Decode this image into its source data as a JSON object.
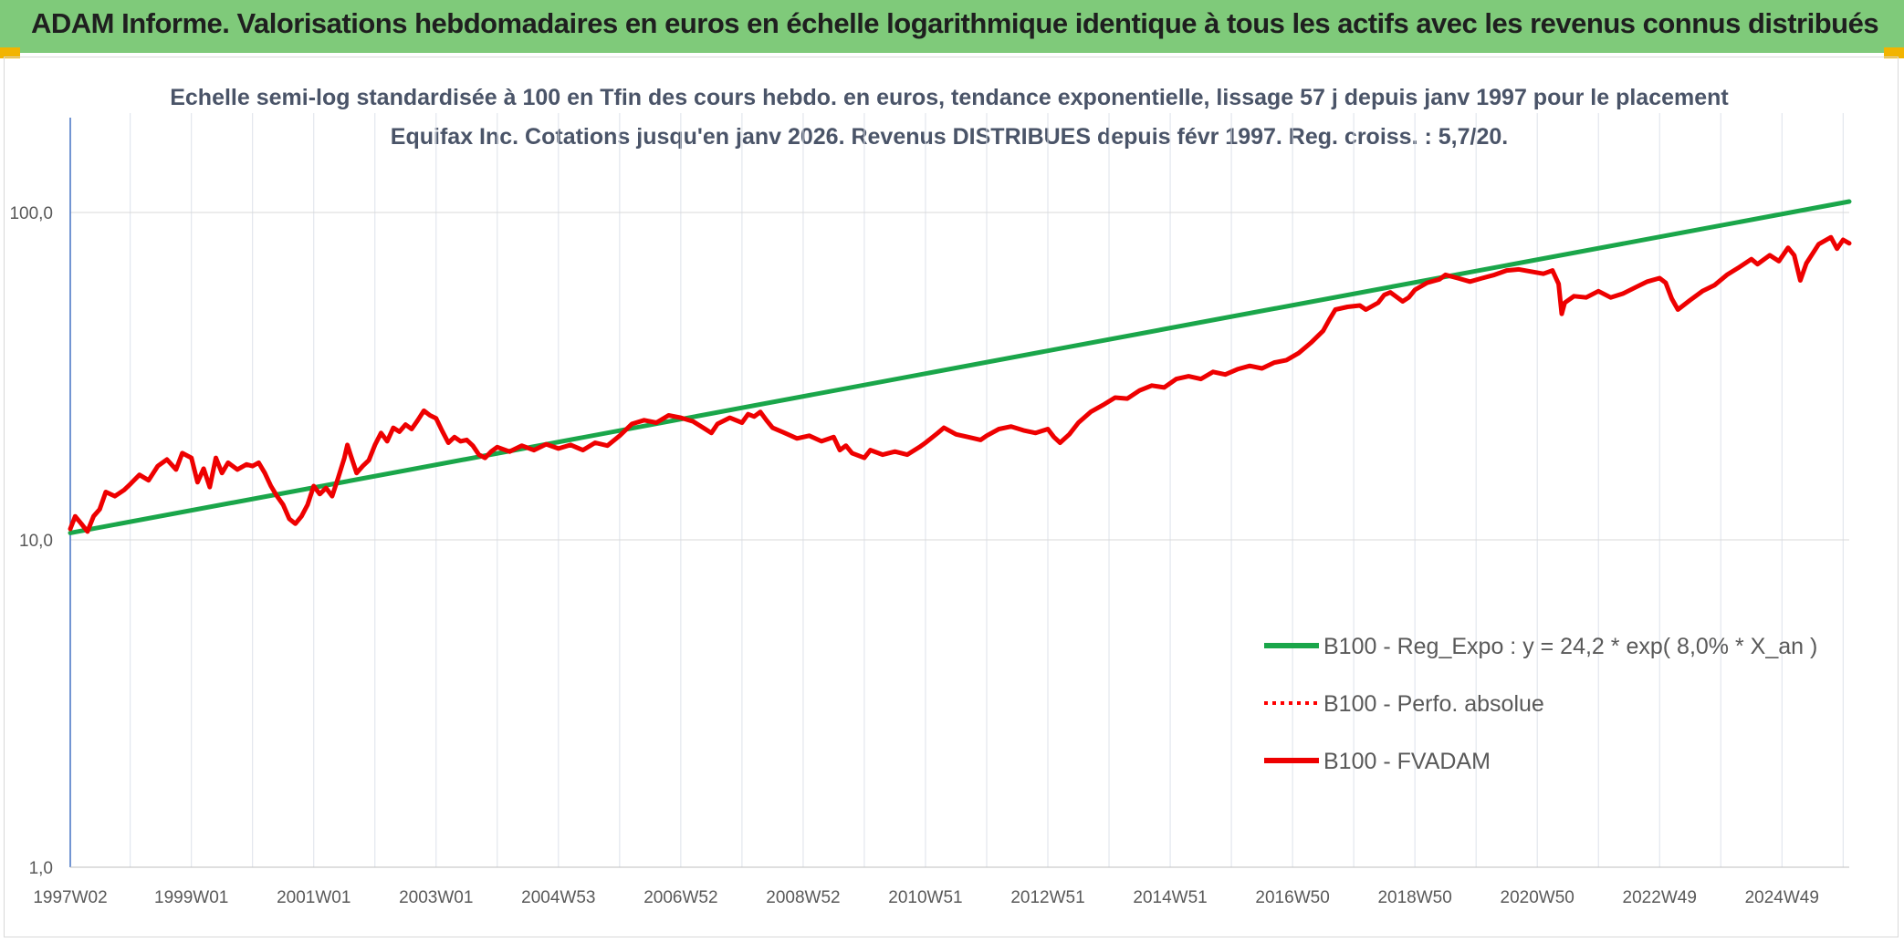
{
  "header": {
    "title": "ADAM Informe. Valorisations hebdomadaires en euros en échelle logarithmique identique à tous les actifs avec les revenus connus distribués",
    "banner_color": "#7fca7a",
    "accent_color": "#f2b400"
  },
  "chart_data": {
    "type": "line",
    "title": "Echelle semi-log standardisée à 100 en Tfin des cours hebdo. en euros, tendance exponentielle, lissage 57 j depuis janv 1997 pour le placement Equifax Inc. Cotations jusqu'en janv 2026. Revenus DISTRIBUES depuis févr 1997. Reg. croiss. : 5,7/20.",
    "yscale": "log",
    "ylim": [
      1,
      200
    ],
    "xlim": [
      1997.02,
      2026.1
    ],
    "grid": true,
    "legend_position": "right-middle",
    "x_ticks": [
      {
        "label": "1997W02",
        "x": 1997.02
      },
      {
        "label": "1999W01",
        "x": 1999.0
      },
      {
        "label": "2001W01",
        "x": 2001.0
      },
      {
        "label": "2003W01",
        "x": 2003.0
      },
      {
        "label": "2004W53",
        "x": 2005.0
      },
      {
        "label": "2006W52",
        "x": 2007.0
      },
      {
        "label": "2008W52",
        "x": 2009.0
      },
      {
        "label": "2010W51",
        "x": 2011.0
      },
      {
        "label": "2012W51",
        "x": 2013.0
      },
      {
        "label": "2014W51",
        "x": 2015.0
      },
      {
        "label": "2016W50",
        "x": 2017.0
      },
      {
        "label": "2018W50",
        "x": 2019.0
      },
      {
        "label": "2020W50",
        "x": 2021.0
      },
      {
        "label": "2022W49",
        "x": 2023.0
      },
      {
        "label": "2024W49",
        "x": 2025.0
      }
    ],
    "y_ticks": [
      {
        "label": "1,0",
        "value": 1
      },
      {
        "label": "10,0",
        "value": 10
      },
      {
        "label": "100,0",
        "value": 100
      }
    ],
    "series": [
      {
        "name": "B100 - Reg_Expo : y = 24,2 * exp( 8,0% *  X_an )",
        "color": "#1aa64a",
        "style": "solid",
        "points": [
          [
            1997.02,
            10.5
          ],
          [
            2026.1,
            108
          ]
        ]
      },
      {
        "name": "B100 - Perfo. absolue",
        "color": "#ff0000",
        "style": "dotted",
        "points": []
      },
      {
        "name": "B100 - FVADAM",
        "color": "#ee0000",
        "style": "solid",
        "points": [
          [
            1997.02,
            10.8
          ],
          [
            1997.1,
            11.8
          ],
          [
            1997.2,
            11.2
          ],
          [
            1997.3,
            10.6
          ],
          [
            1997.4,
            11.8
          ],
          [
            1997.5,
            12.4
          ],
          [
            1997.6,
            14.0
          ],
          [
            1997.75,
            13.6
          ],
          [
            1997.9,
            14.2
          ],
          [
            1998.0,
            14.8
          ],
          [
            1998.15,
            15.8
          ],
          [
            1998.3,
            15.2
          ],
          [
            1998.45,
            16.8
          ],
          [
            1998.6,
            17.6
          ],
          [
            1998.75,
            16.4
          ],
          [
            1998.85,
            18.4
          ],
          [
            1999.0,
            17.8
          ],
          [
            1999.1,
            15.0
          ],
          [
            1999.2,
            16.5
          ],
          [
            1999.3,
            14.5
          ],
          [
            1999.4,
            17.8
          ],
          [
            1999.5,
            16.0
          ],
          [
            1999.6,
            17.2
          ],
          [
            1999.75,
            16.4
          ],
          [
            1999.9,
            17.0
          ],
          [
            2000.0,
            16.8
          ],
          [
            2000.1,
            17.2
          ],
          [
            2000.2,
            16.0
          ],
          [
            2000.3,
            14.6
          ],
          [
            2000.4,
            13.6
          ],
          [
            2000.5,
            12.8
          ],
          [
            2000.6,
            11.6
          ],
          [
            2000.7,
            11.2
          ],
          [
            2000.8,
            11.8
          ],
          [
            2000.9,
            12.8
          ],
          [
            2001.0,
            14.6
          ],
          [
            2001.1,
            13.8
          ],
          [
            2001.2,
            14.4
          ],
          [
            2001.3,
            13.6
          ],
          [
            2001.4,
            15.5
          ],
          [
            2001.5,
            17.8
          ],
          [
            2001.55,
            19.5
          ],
          [
            2001.6,
            18.2
          ],
          [
            2001.7,
            16.0
          ],
          [
            2001.8,
            16.8
          ],
          [
            2001.9,
            17.5
          ],
          [
            2002.0,
            19.5
          ],
          [
            2002.1,
            21.2
          ],
          [
            2002.2,
            20.0
          ],
          [
            2002.3,
            22.0
          ],
          [
            2002.4,
            21.4
          ],
          [
            2002.5,
            22.5
          ],
          [
            2002.6,
            21.8
          ],
          [
            2002.7,
            23.2
          ],
          [
            2002.8,
            24.8
          ],
          [
            2002.9,
            24.0
          ],
          [
            2003.0,
            23.5
          ],
          [
            2003.1,
            21.5
          ],
          [
            2003.2,
            19.8
          ],
          [
            2003.3,
            20.6
          ],
          [
            2003.4,
            20.0
          ],
          [
            2003.5,
            20.2
          ],
          [
            2003.6,
            19.4
          ],
          [
            2003.7,
            18.2
          ],
          [
            2003.8,
            17.8
          ],
          [
            2003.9,
            18.6
          ],
          [
            2004.0,
            19.2
          ],
          [
            2004.2,
            18.6
          ],
          [
            2004.4,
            19.4
          ],
          [
            2004.6,
            18.8
          ],
          [
            2004.8,
            19.6
          ],
          [
            2005.0,
            19.0
          ],
          [
            2005.2,
            19.5
          ],
          [
            2005.4,
            18.8
          ],
          [
            2005.6,
            19.8
          ],
          [
            2005.8,
            19.4
          ],
          [
            2006.0,
            20.8
          ],
          [
            2006.2,
            22.6
          ],
          [
            2006.4,
            23.2
          ],
          [
            2006.6,
            22.8
          ],
          [
            2006.8,
            24.0
          ],
          [
            2007.0,
            23.6
          ],
          [
            2007.2,
            23.0
          ],
          [
            2007.4,
            21.8
          ],
          [
            2007.5,
            21.2
          ],
          [
            2007.6,
            22.6
          ],
          [
            2007.8,
            23.6
          ],
          [
            2008.0,
            22.8
          ],
          [
            2008.1,
            24.2
          ],
          [
            2008.2,
            23.8
          ],
          [
            2008.3,
            24.6
          ],
          [
            2008.4,
            23.2
          ],
          [
            2008.5,
            22.0
          ],
          [
            2008.7,
            21.2
          ],
          [
            2008.9,
            20.4
          ],
          [
            2009.1,
            20.8
          ],
          [
            2009.3,
            20.0
          ],
          [
            2009.5,
            20.6
          ],
          [
            2009.6,
            18.8
          ],
          [
            2009.7,
            19.4
          ],
          [
            2009.8,
            18.4
          ],
          [
            2010.0,
            17.8
          ],
          [
            2010.1,
            18.8
          ],
          [
            2010.3,
            18.2
          ],
          [
            2010.5,
            18.6
          ],
          [
            2010.7,
            18.2
          ],
          [
            2010.9,
            19.2
          ],
          [
            2011.0,
            19.8
          ],
          [
            2011.2,
            21.2
          ],
          [
            2011.3,
            22.0
          ],
          [
            2011.5,
            21.0
          ],
          [
            2011.7,
            20.6
          ],
          [
            2011.9,
            20.2
          ],
          [
            2012.0,
            20.8
          ],
          [
            2012.2,
            21.8
          ],
          [
            2012.4,
            22.2
          ],
          [
            2012.6,
            21.6
          ],
          [
            2012.8,
            21.2
          ],
          [
            2013.0,
            21.8
          ],
          [
            2013.1,
            20.6
          ],
          [
            2013.2,
            19.8
          ],
          [
            2013.35,
            21.0
          ],
          [
            2013.5,
            22.8
          ],
          [
            2013.7,
            24.6
          ],
          [
            2013.9,
            25.8
          ],
          [
            2014.1,
            27.2
          ],
          [
            2014.3,
            27.0
          ],
          [
            2014.5,
            28.6
          ],
          [
            2014.7,
            29.6
          ],
          [
            2014.9,
            29.2
          ],
          [
            2015.1,
            31.0
          ],
          [
            2015.3,
            31.6
          ],
          [
            2015.5,
            31.0
          ],
          [
            2015.7,
            32.6
          ],
          [
            2015.9,
            32.0
          ],
          [
            2016.1,
            33.2
          ],
          [
            2016.3,
            34.0
          ],
          [
            2016.5,
            33.4
          ],
          [
            2016.7,
            34.8
          ],
          [
            2016.9,
            35.4
          ],
          [
            2017.1,
            37.2
          ],
          [
            2017.3,
            40.0
          ],
          [
            2017.5,
            43.5
          ],
          [
            2017.6,
            47.0
          ],
          [
            2017.7,
            50.5
          ],
          [
            2017.9,
            51.5
          ],
          [
            2018.1,
            52.0
          ],
          [
            2018.2,
            50.5
          ],
          [
            2018.4,
            53.0
          ],
          [
            2018.5,
            56.0
          ],
          [
            2018.6,
            57.0
          ],
          [
            2018.8,
            53.5
          ],
          [
            2018.9,
            55.0
          ],
          [
            2019.0,
            58.0
          ],
          [
            2019.2,
            61.0
          ],
          [
            2019.4,
            62.5
          ],
          [
            2019.5,
            64.5
          ],
          [
            2019.7,
            63.0
          ],
          [
            2019.9,
            61.5
          ],
          [
            2020.1,
            63.0
          ],
          [
            2020.3,
            64.5
          ],
          [
            2020.5,
            66.5
          ],
          [
            2020.7,
            67.0
          ],
          [
            2020.9,
            66.0
          ],
          [
            2021.1,
            65.0
          ],
          [
            2021.25,
            66.5
          ],
          [
            2021.35,
            60.5
          ],
          [
            2021.4,
            49.0
          ],
          [
            2021.45,
            53.0
          ],
          [
            2021.6,
            55.5
          ],
          [
            2021.8,
            55.0
          ],
          [
            2022.0,
            57.5
          ],
          [
            2022.2,
            55.0
          ],
          [
            2022.4,
            56.5
          ],
          [
            2022.6,
            59.0
          ],
          [
            2022.8,
            61.5
          ],
          [
            2023.0,
            63.0
          ],
          [
            2023.1,
            61.0
          ],
          [
            2023.2,
            54.5
          ],
          [
            2023.3,
            50.5
          ],
          [
            2023.5,
            54.0
          ],
          [
            2023.7,
            57.5
          ],
          [
            2023.9,
            60.0
          ],
          [
            2024.1,
            64.5
          ],
          [
            2024.3,
            68.0
          ],
          [
            2024.5,
            72.0
          ],
          [
            2024.6,
            69.5
          ],
          [
            2024.8,
            74.0
          ],
          [
            2024.95,
            71.0
          ],
          [
            2025.1,
            78.0
          ],
          [
            2025.2,
            74.0
          ],
          [
            2025.3,
            62.0
          ],
          [
            2025.4,
            70.0
          ],
          [
            2025.6,
            80.0
          ],
          [
            2025.8,
            84.0
          ],
          [
            2025.9,
            77.5
          ],
          [
            2026.0,
            82.5
          ],
          [
            2026.1,
            80.5
          ]
        ]
      }
    ]
  }
}
